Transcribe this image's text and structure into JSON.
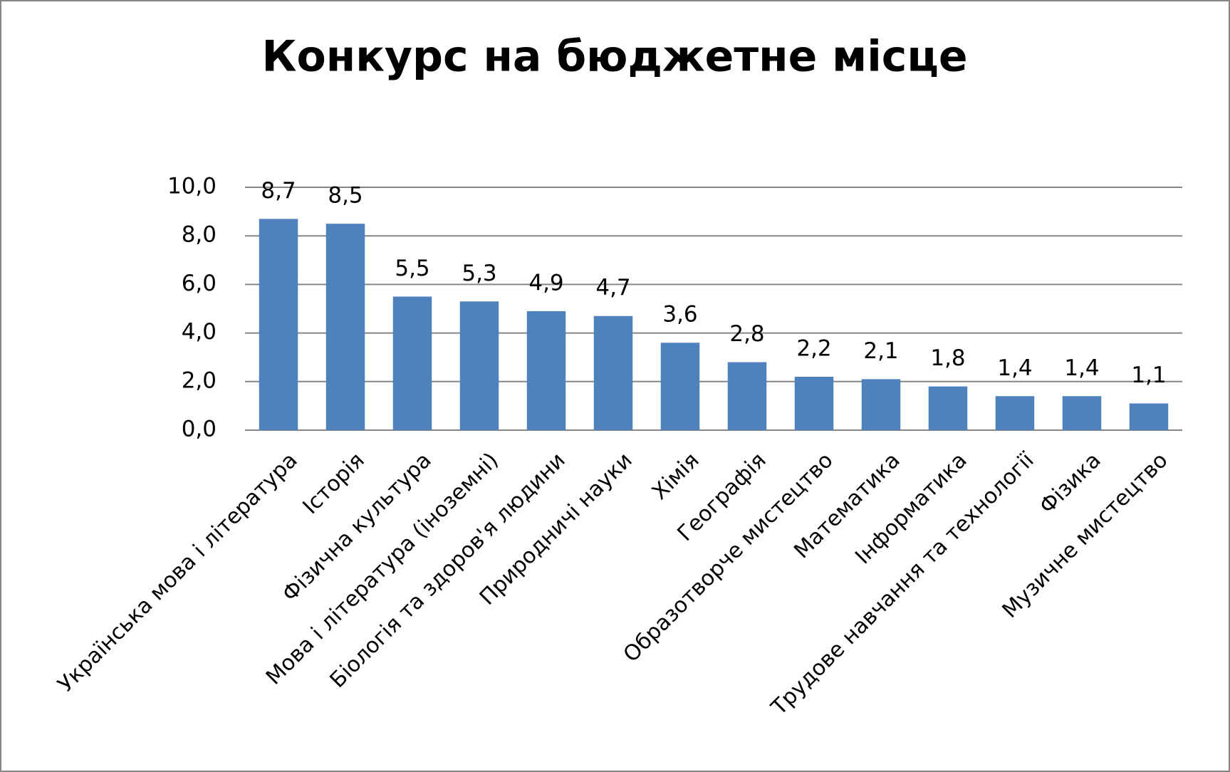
{
  "chart_data": {
    "type": "bar",
    "title": "Конкурс на бюджетне місце",
    "categories": [
      "Українська мова і література",
      "Історія",
      "Фізична культура",
      "Мова і література (іноземні)",
      "Біологія та здоров'я людини",
      "Природничі науки",
      "Хімія",
      "Географія",
      "Образотворче мистецтво",
      "Математика",
      "Інформатика",
      "Трудове навчання та технології",
      "Фізика",
      "Музичне мистецтво"
    ],
    "values": [
      8.7,
      8.5,
      5.5,
      5.3,
      4.9,
      4.7,
      3.6,
      2.8,
      2.2,
      2.1,
      1.8,
      1.4,
      1.4,
      1.1
    ],
    "value_labels": [
      "8,7",
      "8,5",
      "5,5",
      "5,3",
      "4,9",
      "4,7",
      "3,6",
      "2,8",
      "2,2",
      "2,1",
      "1,8",
      "1,4",
      "1,4",
      "1,1"
    ],
    "color": "#4f81bd",
    "ylim": [
      0,
      10
    ],
    "yticks": [
      {
        "value": 0,
        "label": "0,0"
      },
      {
        "value": 2,
        "label": "2,0"
      },
      {
        "value": 4,
        "label": "4,0"
      },
      {
        "value": 6,
        "label": "6,0"
      },
      {
        "value": 8,
        "label": "8,0"
      },
      {
        "value": 10,
        "label": "10,0"
      }
    ],
    "grid": true
  }
}
